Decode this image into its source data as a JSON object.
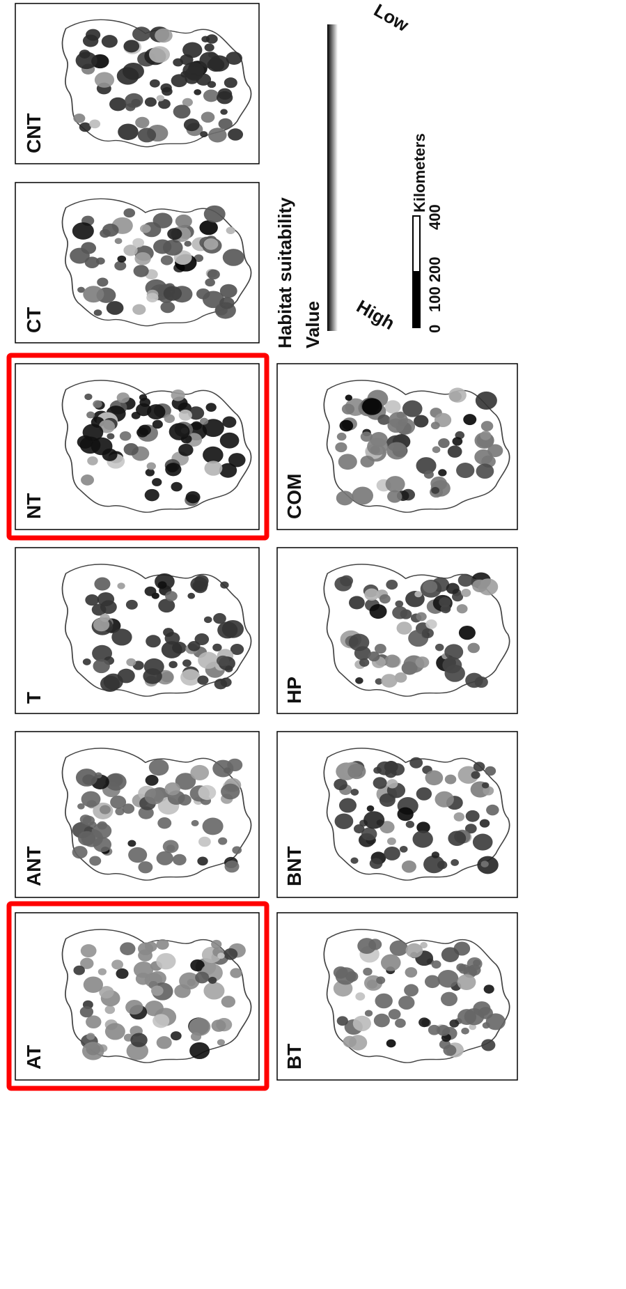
{
  "panels": [
    {
      "id": "CNT",
      "label": "CNT",
      "highlighted": false
    },
    {
      "id": "CT",
      "label": "CT",
      "highlighted": false
    },
    {
      "id": "NT",
      "label": "NT",
      "highlighted": true
    },
    {
      "id": "T",
      "label": "T",
      "highlighted": false
    },
    {
      "id": "ANT",
      "label": "ANT",
      "highlighted": false
    },
    {
      "id": "AT",
      "label": "AT",
      "highlighted": true
    },
    {
      "id": "COM",
      "label": "COM",
      "highlighted": false
    },
    {
      "id": "HP",
      "label": "HP",
      "highlighted": false
    },
    {
      "id": "BNT",
      "label": "BNT",
      "highlighted": false
    },
    {
      "id": "BT",
      "label": "BT",
      "highlighted": false
    }
  ],
  "legend": {
    "title_line1": "Habitat suitability",
    "title_line2": "Value",
    "high": "High",
    "low": "Low",
    "scale_unit": "Kilometers",
    "scale_ticks": [
      "0",
      "100 200",
      "400"
    ]
  },
  "colors": {
    "highlight": "#ff0000",
    "high": "#000000",
    "low": "#ffffff"
  }
}
